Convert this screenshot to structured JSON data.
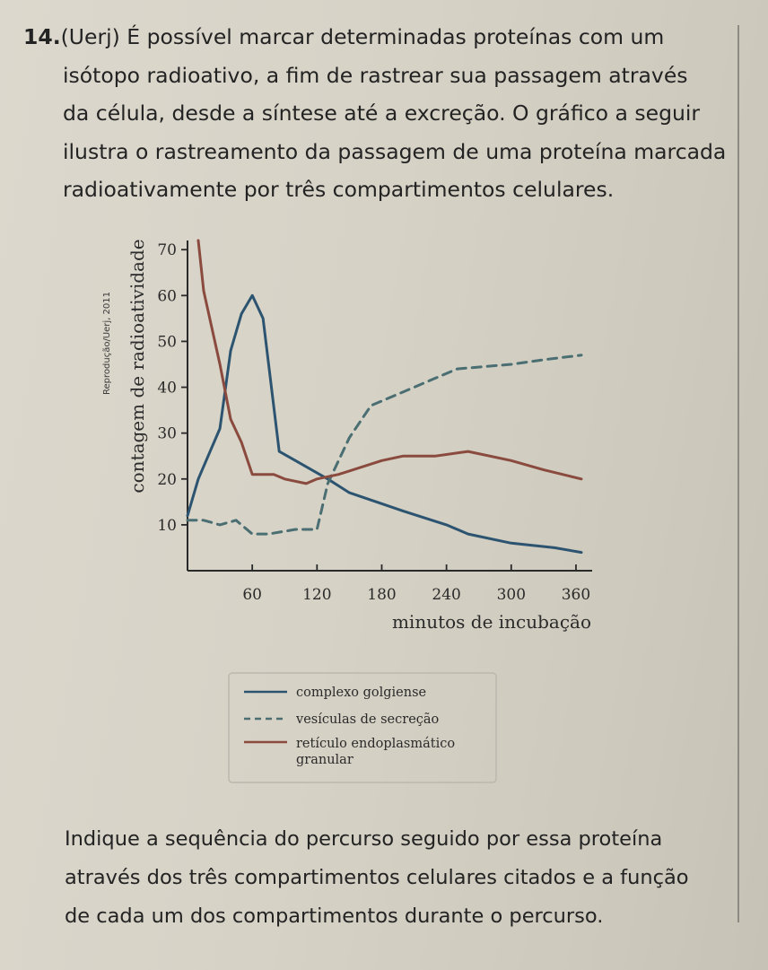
{
  "question": {
    "number": "14.",
    "lines": [
      "(Uerj) É possível marcar determinadas proteínas com um",
      "isótopo radioativo, a fim de rastrear sua passagem através",
      "da célula, desde a síntese até a excreção. O gráfico a seguir",
      "ilustra o rastreamento da passagem de uma proteína marcada",
      "radioativamente por três compartimentos celulares."
    ]
  },
  "chart_data": {
    "type": "line",
    "credit": "Reprodução/Uerj, 2011",
    "xlabel": "minutos de incubação",
    "ylabel": "contagem de radioatividade",
    "x_ticks": [
      60,
      120,
      180,
      240,
      300,
      360
    ],
    "y_ticks": [
      10,
      20,
      30,
      40,
      50,
      60,
      70
    ],
    "xlim": [
      0,
      375
    ],
    "ylim": [
      0,
      72
    ],
    "series": [
      {
        "name": "complexo golgiense",
        "style": "solid",
        "color": "#2c5470",
        "x": [
          0,
          10,
          30,
          40,
          50,
          60,
          70,
          85,
          100,
          130,
          150,
          175,
          200,
          240,
          260,
          300,
          340,
          365
        ],
        "y": [
          12,
          20,
          31,
          48,
          56,
          60,
          55,
          26,
          24,
          20,
          17,
          15,
          13,
          10,
          8,
          6,
          5,
          4
        ]
      },
      {
        "name": "vesículas de secreção",
        "style": "dashed",
        "color": "#4a6e72",
        "x": [
          0,
          15,
          30,
          45,
          60,
          75,
          100,
          120,
          130,
          150,
          170,
          180,
          200,
          230,
          250,
          300,
          330,
          365
        ],
        "y": [
          11,
          11,
          10,
          11,
          8,
          8,
          9,
          9,
          19,
          29,
          36,
          37,
          39,
          42,
          44,
          45,
          46,
          47
        ]
      },
      {
        "name": "retículo endoplasmático granular",
        "style": "solid",
        "color": "#8a4a3e",
        "x": [
          10,
          15,
          30,
          40,
          50,
          60,
          80,
          90,
          110,
          120,
          140,
          180,
          200,
          230,
          260,
          300,
          330,
          365
        ],
        "y": [
          72,
          61,
          45,
          33,
          28,
          21,
          21,
          20,
          19,
          20,
          21,
          24,
          25,
          25,
          26,
          24,
          22,
          20
        ]
      }
    ],
    "legend": {
      "position": "bottom",
      "entries": [
        "complexo golgiense",
        "vesículas de secreção",
        "retículo endoplasmático"
      ],
      "continuation": "granular"
    }
  },
  "prompt": {
    "lines": [
      "Indique a sequência do percurso seguido por essa proteína",
      "através dos três compartimentos celulares citados e a função",
      "de cada um dos compartimentos durante o percurso."
    ]
  }
}
